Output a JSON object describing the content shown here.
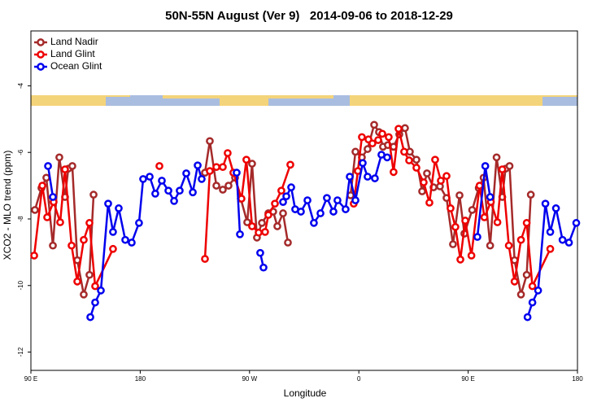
{
  "chart_data": {
    "type": "line",
    "title": "50N-55N August (Ver 9)   2014-09-06 to 2018-12-29",
    "x_label": "Longitude",
    "y_label": "XCO2 - MLO trend (ppm)",
    "xlim": [
      90,
      540
    ],
    "ylim": [
      -12.55,
      -2.35
    ],
    "xticks": [
      {
        "value": 90,
        "label": "90 E"
      },
      180,
      {
        "value": 270,
        "label": "90 W"
      },
      {
        "value": 360,
        "label": "0"
      },
      {
        "value": 450,
        "label": "90 E"
      },
      {
        "value": 540,
        "label": "180"
      }
    ],
    "yticks": [
      -12,
      -10,
      -8,
      -6,
      -4
    ],
    "legend": "upper left",
    "series": [
      {
        "name": "Land Nadir",
        "color": "#a52a2a",
        "x": [
          93.3,
          98.7,
          102.7,
          108.1,
          113.4,
          118.1,
          120.8,
          124.1,
          128.2,
          133.5,
          138.2,
          141.6,
          null,
          233.3,
          237.3,
          242.7,
          248.0,
          252.7,
          258.1,
          262.8,
          268.1,
          272.1,
          276.1,
          280.2,
          285.5,
          289.5,
          292.9,
          297.6,
          301.6,
          null,
          353.2,
          357.2,
          362.5,
          367.2,
          372.6,
          376.6,
          379.9,
          383.9,
          388.6,
          393.3,
          398.0,
          402.0,
          407.4,
          412.1,
          416.1,
          421.5,
          426.8,
          432.2,
          437.5,
          442.9,
          446.9,
          453.3,
          458.7,
          462.7,
          468.1,
          473.4,
          478.1,
          480.8,
          484.1,
          488.2,
          493.5,
          498.2,
          501.6
        ],
        "values": [
          -7.73,
          -7.07,
          -6.76,
          -8.8,
          -6.15,
          -7.34,
          -6.49,
          -6.41,
          -9.24,
          -10.27,
          -9.68,
          -7.27,
          null,
          -6.61,
          -5.66,
          -7.0,
          -7.12,
          -7.0,
          -6.76,
          -7.39,
          -8.1,
          -6.34,
          -8.56,
          -8.12,
          -7.83,
          -7.78,
          -8.22,
          -7.83,
          -8.71,
          null,
          -7.29,
          -5.98,
          -6.15,
          -5.9,
          -5.17,
          -5.39,
          -5.83,
          -5.78,
          -5.83,
          -5.46,
          -5.27,
          -5.98,
          -6.22,
          -7.17,
          -6.63,
          -7.05,
          -7.02,
          -7.37,
          -8.76,
          -7.29,
          -8.44,
          -7.73,
          -7.07,
          -6.76,
          -8.8,
          -6.15,
          -7.34,
          -6.49,
          -6.41,
          -9.24,
          -10.27,
          -9.68,
          -7.27
        ]
      },
      {
        "name": "Land Glint",
        "color": "#ee0000",
        "x": [
          92.7,
          99.4,
          103.4,
          108.7,
          114.1,
          118.1,
          123.5,
          128.2,
          133.5,
          138.2,
          142.9,
          157.6,
          null,
          195.8,
          null,
          233.3,
          237.3,
          242.7,
          248.0,
          252.0,
          256.7,
          263.4,
          267.4,
          272.1,
          277.5,
          282.8,
          285.5,
          290.9,
          296.2,
          303.6,
          null,
          355.8,
          359.2,
          362.5,
          367.9,
          371.2,
          375.9,
          379.3,
          384.6,
          388.6,
          392.7,
          397.3,
          401.4,
          407.4,
          413.4,
          418.1,
          422.8,
          427.5,
          432.2,
          435.5,
          439.5,
          443.6,
          447.6,
          452.7,
          459.4,
          463.4,
          468.7,
          474.1,
          478.1,
          483.5,
          488.2,
          493.5,
          498.2,
          502.9,
          517.6
        ],
        "values": [
          -9.1,
          -7.0,
          -7.95,
          -7.49,
          -8.1,
          -6.51,
          -8.8,
          -9.88,
          -8.63,
          -8.12,
          -10.02,
          -8.9,
          null,
          -6.41,
          null,
          -9.2,
          -6.56,
          -6.44,
          -6.44,
          -6.02,
          -6.61,
          -7.39,
          -6.22,
          -8.22,
          -8.41,
          -8.39,
          -7.88,
          -7.54,
          -7.15,
          -6.37,
          null,
          -7.54,
          -6.56,
          -5.54,
          -5.61,
          -5.73,
          -5.63,
          -5.44,
          -5.54,
          -6.59,
          -5.29,
          -5.98,
          -6.24,
          -6.46,
          -6.9,
          -7.51,
          -6.22,
          -6.85,
          -6.71,
          -7.68,
          -8.24,
          -9.22,
          -8.05,
          -9.1,
          -7.0,
          -7.95,
          -7.49,
          -8.1,
          -6.51,
          -8.8,
          -9.88,
          -8.63,
          -8.12,
          -10.02,
          -8.9
        ]
      },
      {
        "name": "Ocean Glint",
        "color": "#0000ee",
        "x": [
          104.1,
          108.1,
          null,
          138.9,
          142.9,
          147.6,
          153.6,
          157.6,
          162.3,
          167.7,
          173.0,
          179.0,
          182.4,
          187.8,
          192.4,
          197.8,
          203.2,
          207.9,
          212.5,
          217.9,
          223.3,
          227.3,
          230.6,
          null,
          259.4,
          262.1,
          null,
          278.8,
          281.5,
          null,
          297.6,
          300.3,
          304.3,
          307.6,
          312.3,
          317.7,
          323.0,
          328.4,
          333.7,
          339.1,
          342.4,
          349.1,
          352.5,
          357.2,
          363.2,
          367.2,
          373.2,
          378.6,
          383.3,
          null,
          457.6,
          464.1,
          468.1,
          null,
          498.9,
          502.9,
          507.6,
          513.6,
          517.6,
          522.3,
          527.7,
          533.0,
          539.0
        ],
        "values": [
          -6.41,
          -7.34,
          null,
          -10.95,
          -10.51,
          -10.15,
          -7.54,
          -8.39,
          -7.68,
          -8.63,
          -8.71,
          -8.12,
          -6.8,
          -6.73,
          -7.24,
          -6.85,
          -7.15,
          -7.46,
          -7.15,
          -6.63,
          -7.2,
          -6.39,
          -6.8,
          null,
          -6.61,
          -8.46,
          null,
          -9.02,
          -9.46,
          null,
          -7.49,
          -7.32,
          -7.05,
          -7.71,
          -7.78,
          -7.44,
          -8.12,
          -7.83,
          -7.37,
          -7.78,
          -7.44,
          -7.71,
          -6.73,
          -7.44,
          -6.32,
          -6.73,
          -6.78,
          -6.07,
          -6.15,
          null,
          -8.54,
          -6.41,
          -7.34,
          null,
          -10.95,
          -10.51,
          -10.15,
          -7.54,
          -8.39,
          -7.68,
          -8.63,
          -8.71,
          -8.12
        ]
      }
    ]
  }
}
